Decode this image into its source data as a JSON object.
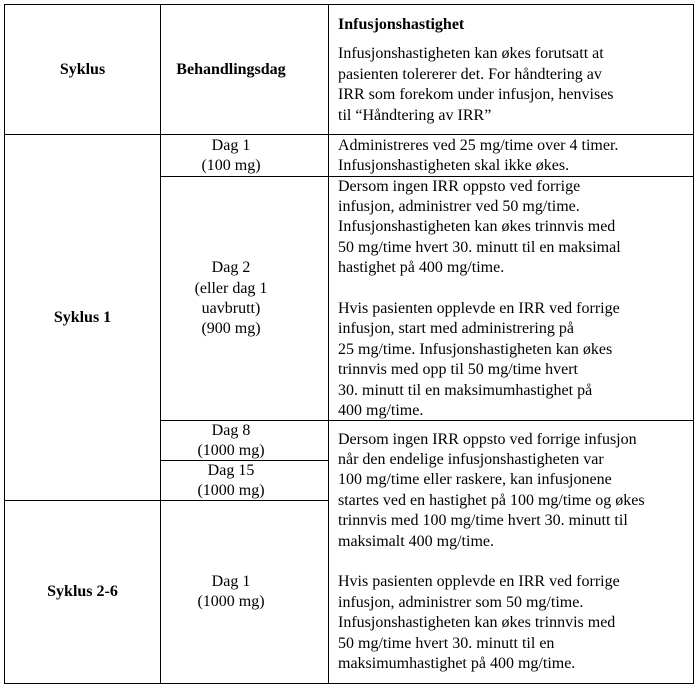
{
  "header": {
    "col1": "Syklus",
    "col2": "Behandlingsdag",
    "col3_title": "Infusjonshastighet",
    "col3_text": "Infusjonshastigheten kan økes forutsatt at\npasienten tolererer det. For håndtering av\nIRR som forekom under infusjon, henvises\ntil “Håndtering av IRR”"
  },
  "rows": {
    "syklus1": "Syklus 1",
    "syklus2_6": "Syklus 2-6",
    "dag1_c1": "Dag 1\n(100 mg)",
    "dag1_c1_rate": "Administreres ved 25 mg/time over 4 timer.\nInfusjonshastigheten skal ikke økes.",
    "dag2_c1": "Dag 2\n(eller dag 1\nuavbrutt)\n(900 mg)",
    "dag2_c1_rate": "Dersom ingen IRR oppsto ved forrige\ninfusjon, administrer ved 50 mg/time.\nInfusjonshastigheten kan økes trinnvis med\n50 mg/time hvert 30. minutt til en maksimal\nhastighet på 400 mg/time.\n\nHvis pasienten opplevde en IRR ved forrige\ninfusjon, start med administrering på\n25 mg/time. Infusjonshastigheten kan økes\ntrinnvis med opp til 50 mg/time hvert\n30. minutt til en maksimumhastighet på\n400 mg/time.",
    "dag8_c1": "Dag 8\n(1000 mg)",
    "dag15_c1": "Dag 15\n(1000 mg)",
    "dag1_c2_6": "Dag 1\n(1000 mg)",
    "subsequent_rate": "Dersom ingen IRR oppsto ved forrige infusjon\nnår den endelige infusjonshastigheten var\n100 mg/time eller raskere, kan infusjonene\nstartes ved en hastighet på 100 mg/time og økes\ntrinnvis med 100 mg/time hvert 30. minutt til\nmaksimalt 400 mg/time.\n\nHvis pasienten opplevde en IRR ved forrige\ninfusjon, administrer som 50 mg/time.\nInfusjonshastigheten kan økes trinnvis med\n50 mg/time hvert 30. minutt til en\nmaksimumhastighet på 400 mg/time."
  }
}
